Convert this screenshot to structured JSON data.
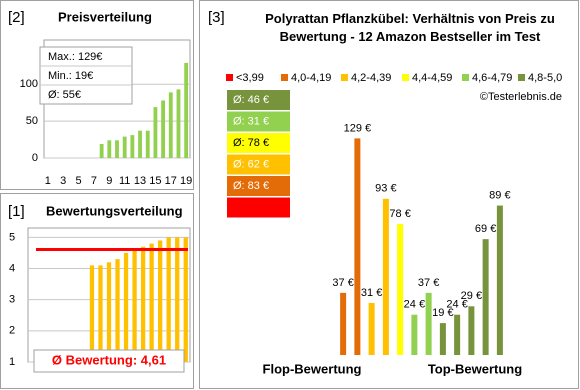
{
  "chart_data": [
    {
      "type": "bar",
      "label": "[2]",
      "title": "Preisverteilung",
      "categories": [
        1,
        null,
        3,
        null,
        5,
        null,
        7,
        null,
        9,
        null,
        11,
        null,
        13,
        null,
        15,
        null,
        17,
        null,
        19
      ],
      "values": [
        null,
        null,
        null,
        null,
        null,
        null,
        null,
        19,
        24,
        24,
        29,
        31,
        37,
        37,
        69,
        78,
        89,
        93,
        129
      ],
      "color": "#92d050",
      "ylim": [
        0,
        160
      ],
      "yticks": [
        0,
        50,
        100
      ],
      "grid": true,
      "stats": [
        "Max.: 129€",
        "Min.: 19€",
        "Ø: 55€"
      ]
    },
    {
      "type": "bar",
      "label": "[1]",
      "title": "Bewertungsverteilung",
      "values": [
        null,
        null,
        null,
        null,
        null,
        null,
        null,
        4.1,
        4.1,
        4.2,
        4.3,
        4.5,
        4.6,
        4.7,
        4.8,
        4.9,
        5.0,
        5.0,
        5.0
      ],
      "color": "#ffc000",
      "ylim": [
        1,
        5.3
      ],
      "yticks": [
        1,
        2,
        3,
        4,
        5
      ],
      "grid": true,
      "mean": 4.61,
      "mean_color": "#ff0000",
      "mean_label": "Ø Bewertung: 4,61"
    },
    {
      "type": "grouped",
      "label": "[3]",
      "title": "Polyrattan Pflanzkübel: Verhältnis von Preis zu Bewertung - 12 Amazon Bestseller im Test",
      "source": "©Testerlebnis.de",
      "ylim": [
        0,
        134
      ],
      "x_labels": [
        "Flop-Bewertung",
        "Top-Bewertung"
      ],
      "series": [
        {
          "name": "<3,99",
          "color": "#ff0000",
          "values": [
            null,
            null,
            null,
            null,
            null,
            null,
            null,
            null,
            null,
            null,
            null,
            null
          ]
        },
        {
          "name": "4,0-4,19",
          "color": "#e36c09",
          "average_label": "Ø: 83 €",
          "values": [
            37,
            129,
            null,
            null,
            null,
            null,
            null,
            null,
            null,
            null,
            null,
            null
          ],
          "value_labels": [
            "37 €",
            "129 €",
            null,
            null,
            null,
            null,
            null,
            null,
            null,
            null,
            null,
            null
          ]
        },
        {
          "name": "4,2-4,39",
          "color": "#ffc000",
          "average_label": "Ø: 62 €",
          "values": [
            null,
            null,
            31,
            93,
            null,
            null,
            null,
            null,
            null,
            null,
            null,
            null
          ],
          "value_labels": [
            null,
            null,
            "31 €",
            "93 €",
            null,
            null,
            null,
            null,
            null,
            null,
            null,
            null
          ]
        },
        {
          "name": "4,4-4,59",
          "color": "#ffff00",
          "average_label": "Ø: 78 €",
          "values": [
            null,
            null,
            null,
            null,
            78,
            null,
            null,
            null,
            null,
            null,
            null,
            null
          ],
          "value_labels": [
            null,
            null,
            null,
            null,
            "78 €",
            null,
            null,
            null,
            null,
            null,
            null,
            null
          ]
        },
        {
          "name": "4,6-4,79",
          "color": "#92d050",
          "average_label": "Ø: 31 €",
          "values": [
            null,
            null,
            null,
            null,
            null,
            24,
            37,
            null,
            null,
            null,
            null,
            null
          ],
          "value_labels": [
            null,
            null,
            null,
            null,
            null,
            "24 €",
            "37 €",
            null,
            null,
            null,
            null,
            null
          ]
        },
        {
          "name": "4,8-5,0",
          "color": "#77933c",
          "average_label": "Ø: 46 €",
          "values": [
            null,
            null,
            null,
            null,
            null,
            null,
            null,
            19,
            24,
            29,
            69,
            89
          ],
          "value_labels": [
            null,
            null,
            null,
            null,
            null,
            null,
            null,
            "19 €",
            "24 €",
            "29 €",
            "69 €",
            "89 €"
          ]
        }
      ]
    }
  ]
}
